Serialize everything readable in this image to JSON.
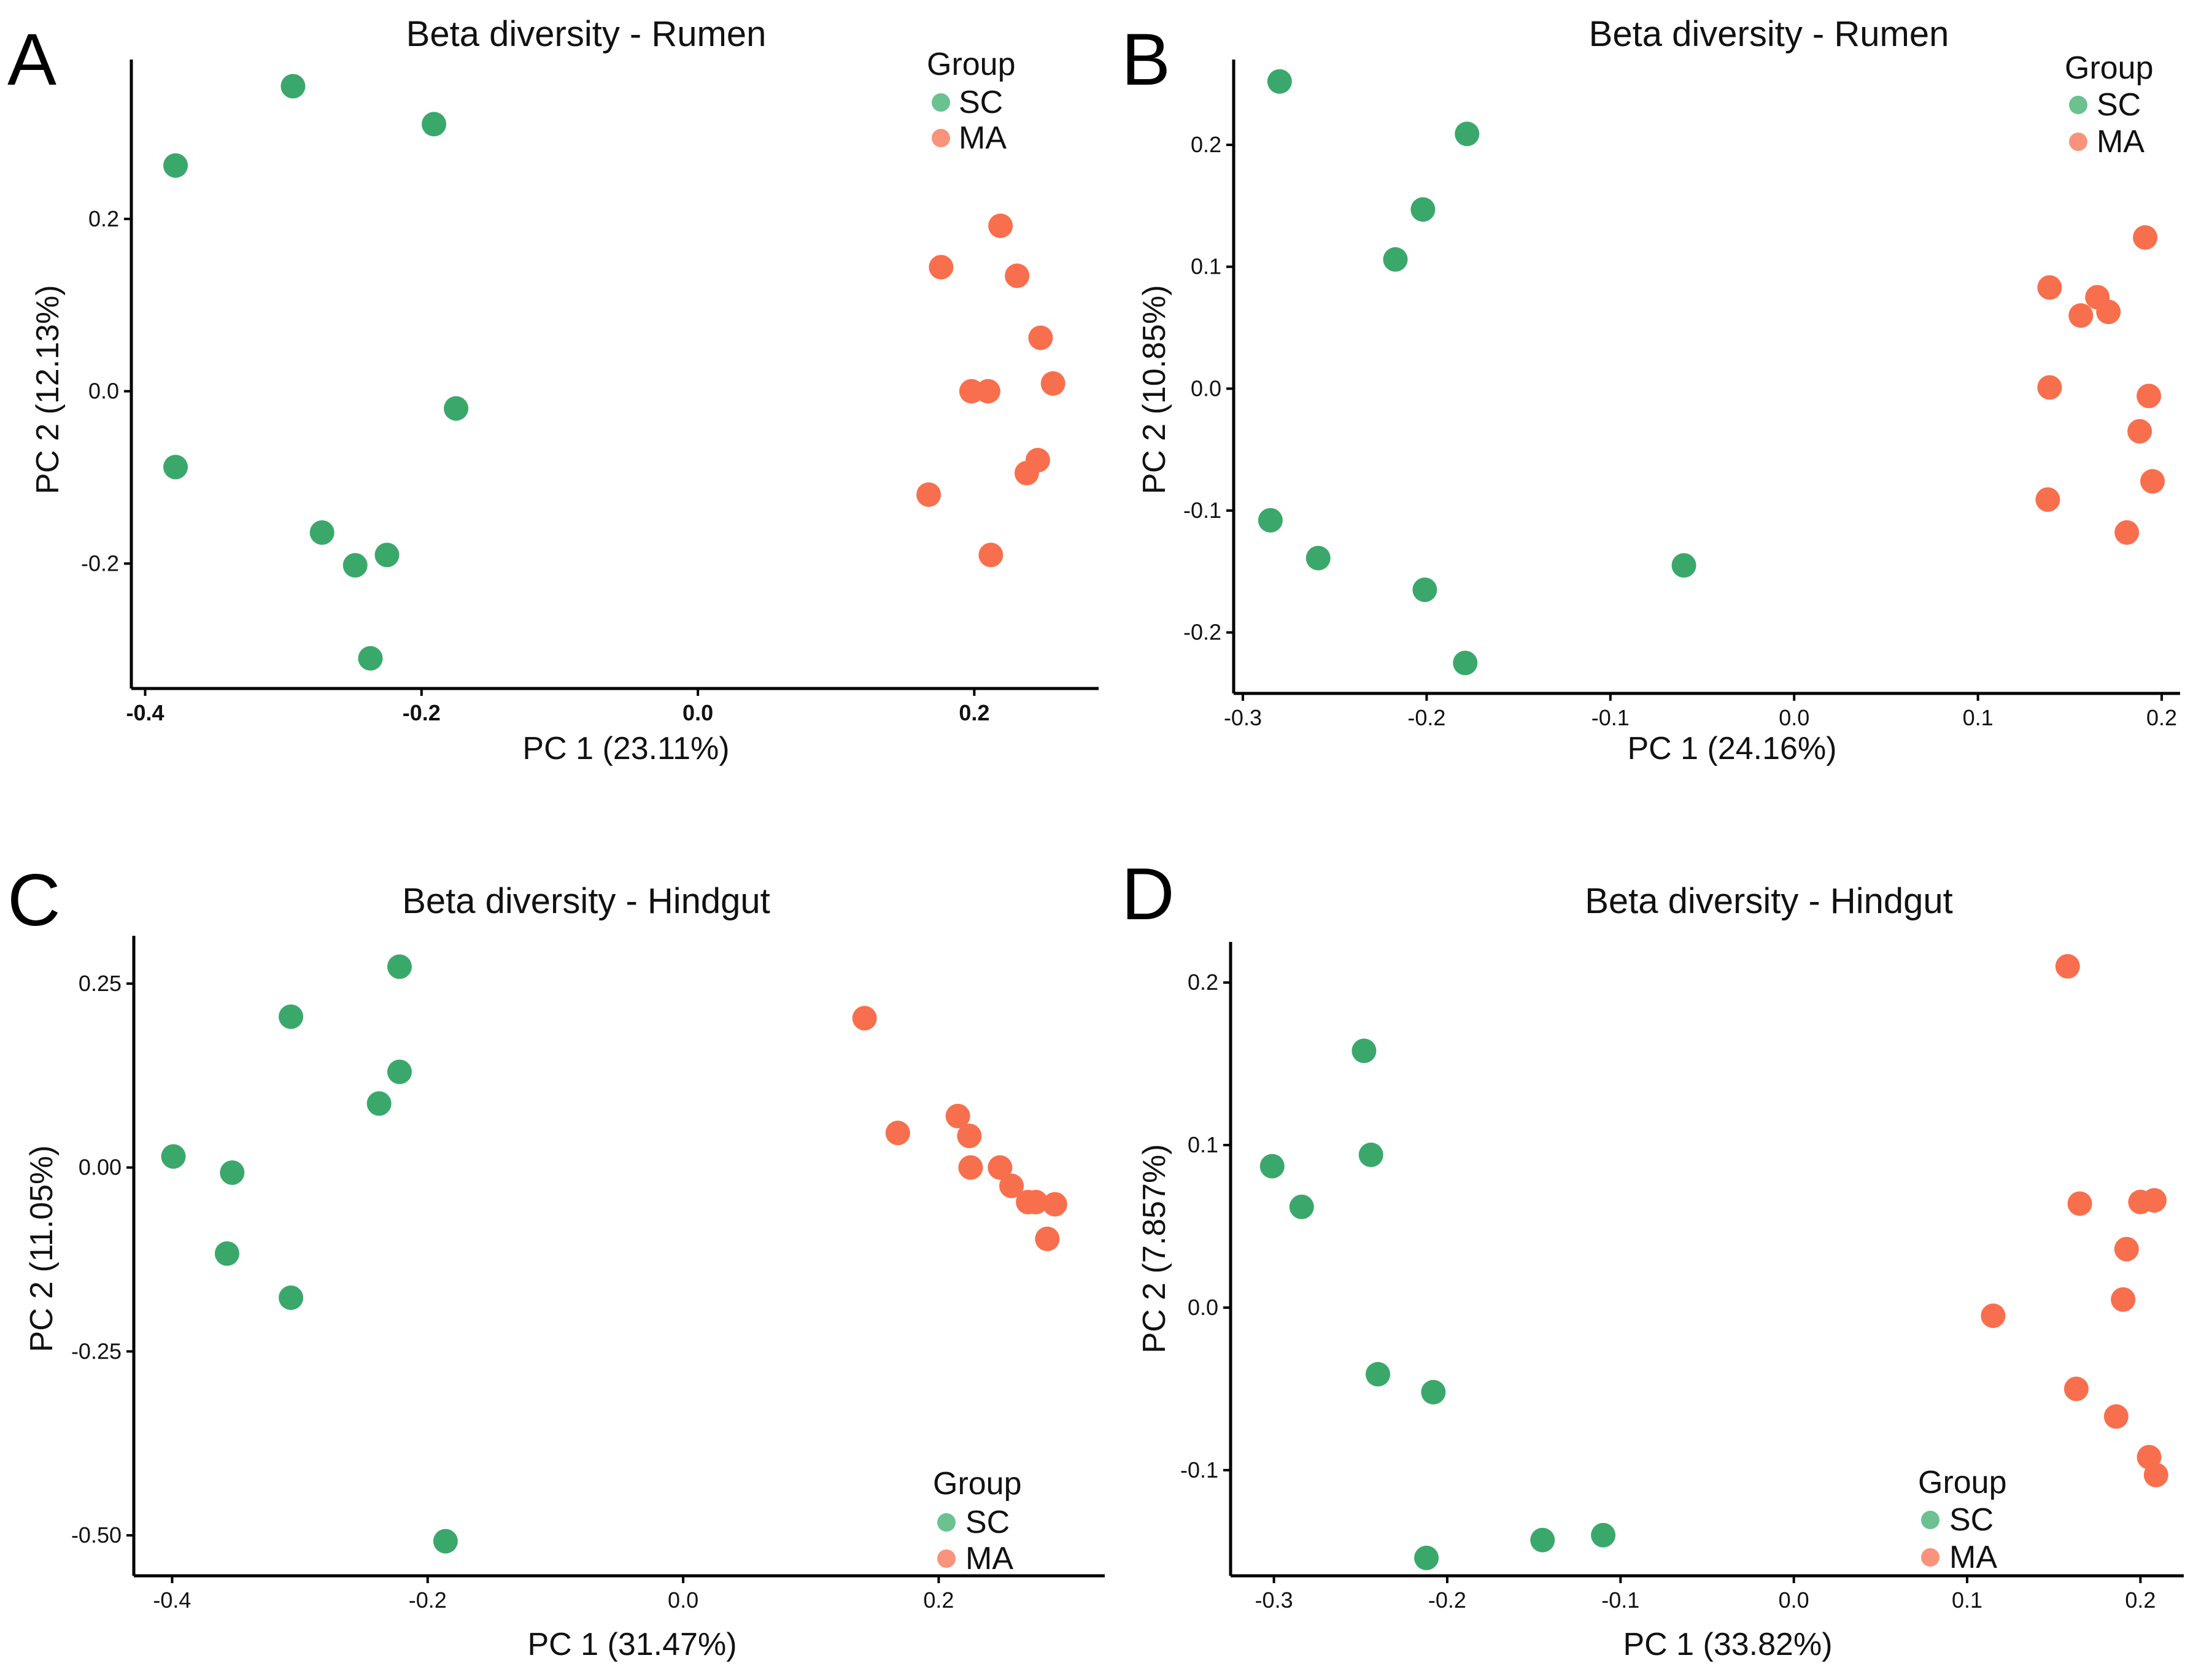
{
  "colors": {
    "SC": "#3BA86B",
    "MA": "#F86F4E",
    "SC_legend": "#6BC190",
    "MA_legend": "#F9937B"
  },
  "chart_data": [
    {
      "panel": "A",
      "type": "scatter",
      "title": "Beta diversity - Rumen",
      "xlabel": "PC 1 (23.11%)",
      "ylabel": "PC 2 (12.13%)",
      "xlim": [
        -0.41,
        0.29
      ],
      "ylim": [
        -0.345,
        0.385
      ],
      "xticks": [
        -0.4,
        -0.2,
        0.0,
        0.2
      ],
      "xtick_labels": [
        "-0.4",
        "-0.2",
        "0.0",
        "0.2"
      ],
      "yticks": [
        -0.2,
        0.0,
        0.2
      ],
      "ytick_labels": [
        "-0.2",
        "0.0",
        "0.2"
      ],
      "bold_xticks": true,
      "legend": {
        "title": "Group",
        "entries": [
          "SC",
          "MA"
        ],
        "position": "top-right"
      },
      "series": [
        {
          "name": "SC",
          "points": [
            [
              -0.378,
              0.262
            ],
            [
              -0.293,
              0.354
            ],
            [
              -0.191,
              0.31
            ],
            [
              -0.378,
              -0.088
            ],
            [
              -0.175,
              -0.02
            ],
            [
              -0.272,
              -0.164
            ],
            [
              -0.248,
              -0.202
            ],
            [
              -0.225,
              -0.19
            ],
            [
              -0.237,
              -0.31
            ]
          ]
        },
        {
          "name": "MA",
          "points": [
            [
              0.176,
              0.144
            ],
            [
              0.219,
              0.192
            ],
            [
              0.231,
              0.134
            ],
            [
              0.248,
              0.062
            ],
            [
              0.257,
              0.009
            ],
            [
              0.198,
              0.0
            ],
            [
              0.21,
              0.0
            ],
            [
              0.246,
              -0.08
            ],
            [
              0.238,
              -0.095
            ],
            [
              0.167,
              -0.12
            ],
            [
              0.212,
              -0.19
            ]
          ]
        }
      ]
    },
    {
      "panel": "B",
      "type": "scatter",
      "title": "Beta diversity - Rumen",
      "xlabel": "PC 1 (24.16%)",
      "ylabel": "PC 2 (10.85%)",
      "xlim": [
        -0.305,
        0.21
      ],
      "ylim": [
        -0.25,
        0.27
      ],
      "xticks": [
        -0.3,
        -0.2,
        -0.1,
        0.0,
        0.1,
        0.2
      ],
      "xtick_labels": [
        "-0.3",
        "-0.2",
        "-0.1",
        "0.0",
        "0.1",
        "0.2"
      ],
      "yticks": [
        -0.2,
        -0.1,
        0.0,
        0.1,
        0.2
      ],
      "ytick_labels": [
        "-0.2",
        "-0.1",
        "0.0",
        "0.1",
        "0.2"
      ],
      "bold_xticks": false,
      "legend": {
        "title": "Group",
        "entries": [
          "SC",
          "MA"
        ],
        "position": "top-right"
      },
      "series": [
        {
          "name": "SC",
          "points": [
            [
              -0.28,
              0.252
            ],
            [
              -0.178,
              0.209
            ],
            [
              -0.202,
              0.147
            ],
            [
              -0.217,
              0.106
            ],
            [
              -0.285,
              -0.108
            ],
            [
              -0.259,
              -0.139
            ],
            [
              -0.201,
              -0.165
            ],
            [
              -0.179,
              -0.225
            ],
            [
              -0.06,
              -0.145
            ]
          ]
        },
        {
          "name": "MA",
          "points": [
            [
              0.191,
              0.124
            ],
            [
              0.139,
              0.083
            ],
            [
              0.165,
              0.075
            ],
            [
              0.156,
              0.06
            ],
            [
              0.171,
              0.063
            ],
            [
              0.139,
              0.001
            ],
            [
              0.193,
              -0.006
            ],
            [
              0.188,
              -0.035
            ],
            [
              0.195,
              -0.076
            ],
            [
              0.138,
              -0.091
            ],
            [
              0.181,
              -0.118
            ]
          ]
        }
      ]
    },
    {
      "panel": "C",
      "type": "scatter",
      "title": "Beta diversity - Hindgut",
      "xlabel": "PC 1 (31.47%)",
      "ylabel": "PC 2 (11.05%)",
      "xlim": [
        -0.43,
        0.33
      ],
      "ylim": [
        -0.555,
        0.315
      ],
      "xticks": [
        -0.4,
        -0.2,
        0.0,
        0.2
      ],
      "xtick_labels": [
        "-0.4",
        "-0.2",
        "0.0",
        "0.2"
      ],
      "yticks": [
        -0.5,
        -0.25,
        0.0,
        0.25
      ],
      "ytick_labels": [
        "-0.50",
        "-0.25",
        "0.00",
        "0.25"
      ],
      "bold_xticks": false,
      "legend": {
        "title": "Group",
        "entries": [
          "SC",
          "MA"
        ],
        "position": "bottom-right"
      },
      "series": [
        {
          "name": "SC",
          "points": [
            [
              -0.222,
              0.273
            ],
            [
              -0.307,
              0.205
            ],
            [
              -0.222,
              0.13
            ],
            [
              -0.238,
              0.087
            ],
            [
              -0.399,
              0.015
            ],
            [
              -0.353,
              -0.007
            ],
            [
              -0.357,
              -0.117
            ],
            [
              -0.307,
              -0.177
            ],
            [
              -0.186,
              -0.508
            ]
          ]
        },
        {
          "name": "MA",
          "points": [
            [
              0.142,
              0.203
            ],
            [
              0.168,
              0.047
            ],
            [
              0.215,
              0.07
            ],
            [
              0.224,
              0.043
            ],
            [
              0.225,
              0.0
            ],
            [
              0.248,
              0.0
            ],
            [
              0.257,
              -0.025
            ],
            [
              0.27,
              -0.047
            ],
            [
              0.276,
              -0.047
            ],
            [
              0.291,
              -0.05
            ],
            [
              0.285,
              -0.097
            ]
          ]
        }
      ]
    },
    {
      "panel": "D",
      "type": "scatter",
      "title": "Beta diversity - Hindgut",
      "xlabel": "PC 1 (33.82%)",
      "ylabel": "PC 2 (7.857%)",
      "xlim": [
        -0.325,
        0.225
      ],
      "ylim": [
        -0.165,
        0.225
      ],
      "xticks": [
        -0.3,
        -0.2,
        -0.1,
        0.0,
        0.1,
        0.2
      ],
      "xtick_labels": [
        "-0.3",
        "-0.2",
        "-0.1",
        "0.0",
        "0.1",
        "0.2"
      ],
      "yticks": [
        -0.1,
        0.0,
        0.1,
        0.2
      ],
      "ytick_labels": [
        "-0.1",
        "0.0",
        "0.1",
        "0.2"
      ],
      "bold_xticks": false,
      "legend": {
        "title": "Group",
        "entries": [
          "SC",
          "MA"
        ],
        "position": "bottom-right"
      },
      "series": [
        {
          "name": "SC",
          "points": [
            [
              -0.248,
              0.158
            ],
            [
              -0.301,
              0.087
            ],
            [
              -0.244,
              0.094
            ],
            [
              -0.284,
              0.062
            ],
            [
              -0.24,
              -0.041
            ],
            [
              -0.208,
              -0.052
            ],
            [
              -0.212,
              -0.154
            ],
            [
              -0.145,
              -0.143
            ],
            [
              -0.11,
              -0.14
            ]
          ]
        },
        {
          "name": "MA",
          "points": [
            [
              0.158,
              0.21
            ],
            [
              0.165,
              0.064
            ],
            [
              0.2,
              0.065
            ],
            [
              0.208,
              0.066
            ],
            [
              0.192,
              0.036
            ],
            [
              0.19,
              0.005
            ],
            [
              0.115,
              -0.005
            ],
            [
              0.163,
              -0.05
            ],
            [
              0.186,
              -0.067
            ],
            [
              0.205,
              -0.092
            ],
            [
              0.209,
              -0.103
            ]
          ]
        }
      ]
    }
  ]
}
